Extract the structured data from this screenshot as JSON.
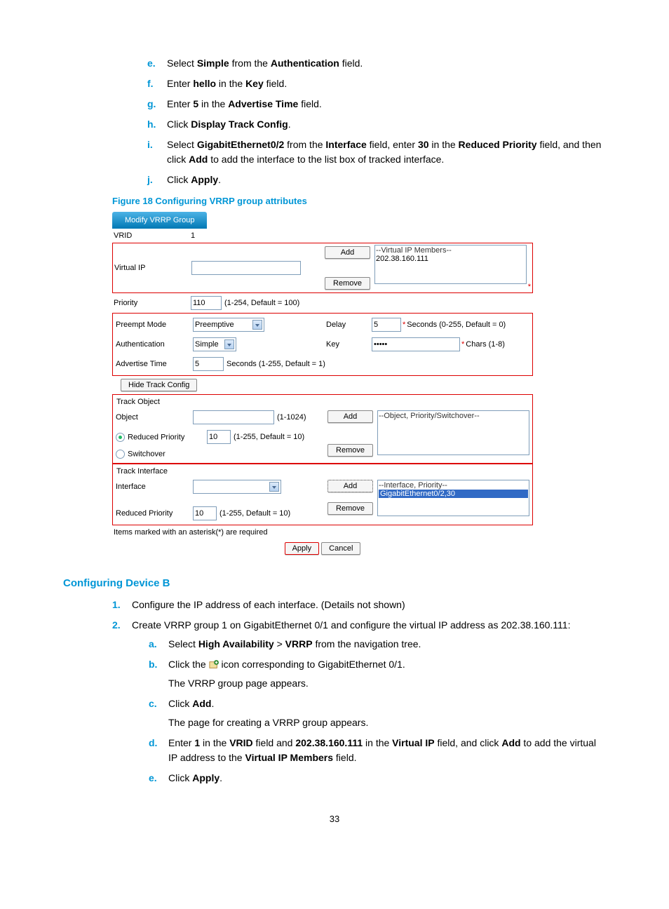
{
  "steps_top": [
    {
      "m": "e.",
      "pre": "Select ",
      "b1": "Simple",
      "mid": " from the ",
      "b2": "Authentication",
      "post": " field."
    },
    {
      "m": "f.",
      "pre": "Enter ",
      "b1": "hello",
      "mid": " in the ",
      "b2": "Key",
      "post": " field."
    },
    {
      "m": "g.",
      "pre": "Enter ",
      "b1": "5",
      "mid": " in the ",
      "b2": "Advertise Time",
      "post": " field."
    },
    {
      "m": "h.",
      "pre": "Click ",
      "b1": "Display Track Config",
      "mid": "",
      "b2": "",
      "post": "."
    },
    {
      "m": "i.",
      "pre": "Select ",
      "b1": "GigabitEthernet0/2",
      "mid": " from the ",
      "b2": "Interface",
      "mid2": " field, enter ",
      "b3": "30",
      "mid3": " in the ",
      "b4": "Reduced Priority",
      "mid4": " field, and then click ",
      "b5": "Add",
      "post": " to add the interface to the list box of tracked interface."
    },
    {
      "m": "j.",
      "pre": "Click ",
      "b1": "Apply",
      "mid": "",
      "b2": "",
      "post": "."
    }
  ],
  "fig_caption": "Figure 18 Configuring VRRP group attributes",
  "shot": {
    "tab": "Modify VRRP Group",
    "vrid_label": "VRID",
    "vrid_value": "1",
    "vip_label": "Virtual IP",
    "vip_listbox_hdr": "--Virtual IP Members--",
    "vip_listbox_item": "202.38.160.111",
    "add": "Add",
    "remove": "Remove",
    "priority_label": "Priority",
    "priority_value": "110",
    "priority_hint": "(1-254, Default = 100)",
    "preempt_label": "Preempt Mode",
    "preempt_value": "Preemptive",
    "delay_label": "Delay",
    "delay_value": "5",
    "delay_hint": "Seconds (0-255, Default = 0)",
    "auth_label": "Authentication",
    "auth_value": "Simple",
    "key_label": "Key",
    "key_value": "●●●●●",
    "key_hint": "Chars (1-8)",
    "adv_label": "Advertise Time",
    "adv_value": "5",
    "adv_hint": "Seconds (1-255, Default = 1)",
    "hide_track": "Hide Track Config",
    "track_obj_hdr": "Track Object",
    "object_label": "Object",
    "object_hint": "(1-1024)",
    "obj_listbox_hdr": "--Object, Priority/Switchover--",
    "rp_radio": "Reduced Priority",
    "rp_value": "10",
    "rp_hint": "(1-255, Default = 10)",
    "sw_radio": "Switchover",
    "track_if_hdr": "Track Interface",
    "if_label": "Interface",
    "if_listbox_hdr": "--Interface, Priority--",
    "if_listbox_item": "GigabitEthernet0/2,30",
    "rp2_label": "Reduced Priority",
    "rp2_value": "10",
    "rp2_hint": "(1-255, Default = 10)",
    "note": "Items marked with an asterisk(*) are required",
    "apply": "Apply",
    "cancel": "Cancel"
  },
  "section_h": "Configuring Device B",
  "num_steps": [
    {
      "m": "1.",
      "text": "Configure the IP address of each interface. (Details not shown)"
    },
    {
      "m": "2.",
      "text": "Create VRRP group 1 on GigabitEthernet 0/1 and configure the virtual IP address as 202.38.160.111:"
    }
  ],
  "sub_steps": [
    {
      "m": "a.",
      "parts": [
        {
          "t": "Select "
        },
        {
          "b": "High Availability"
        },
        {
          "t": " > "
        },
        {
          "b": "VRRP"
        },
        {
          "t": " from the navigation tree."
        }
      ]
    },
    {
      "m": "b.",
      "parts": [
        {
          "t": "Click the "
        },
        {
          "icon": true
        },
        {
          "t": " icon corresponding to GigabitEthernet 0/1."
        }
      ],
      "tail": "The VRRP group page appears."
    },
    {
      "m": "c.",
      "parts": [
        {
          "t": "Click "
        },
        {
          "b": "Add"
        },
        {
          "t": "."
        }
      ],
      "tail": "The page for creating a VRRP group appears."
    },
    {
      "m": "d.",
      "parts": [
        {
          "t": "Enter "
        },
        {
          "b": "1"
        },
        {
          "t": " in the "
        },
        {
          "b": "VRID"
        },
        {
          "t": " field and "
        },
        {
          "b": "202.38.160.111"
        },
        {
          "t": " in the "
        },
        {
          "b": "Virtual IP"
        },
        {
          "t": " field, and click "
        },
        {
          "b": "Add"
        },
        {
          "t": " to add the virtual IP address to the "
        },
        {
          "b": "Virtual IP Members"
        },
        {
          "t": " field."
        }
      ]
    },
    {
      "m": "e.",
      "parts": [
        {
          "t": "Click "
        },
        {
          "b": "Apply"
        },
        {
          "t": "."
        }
      ]
    }
  ],
  "page_num": "33"
}
